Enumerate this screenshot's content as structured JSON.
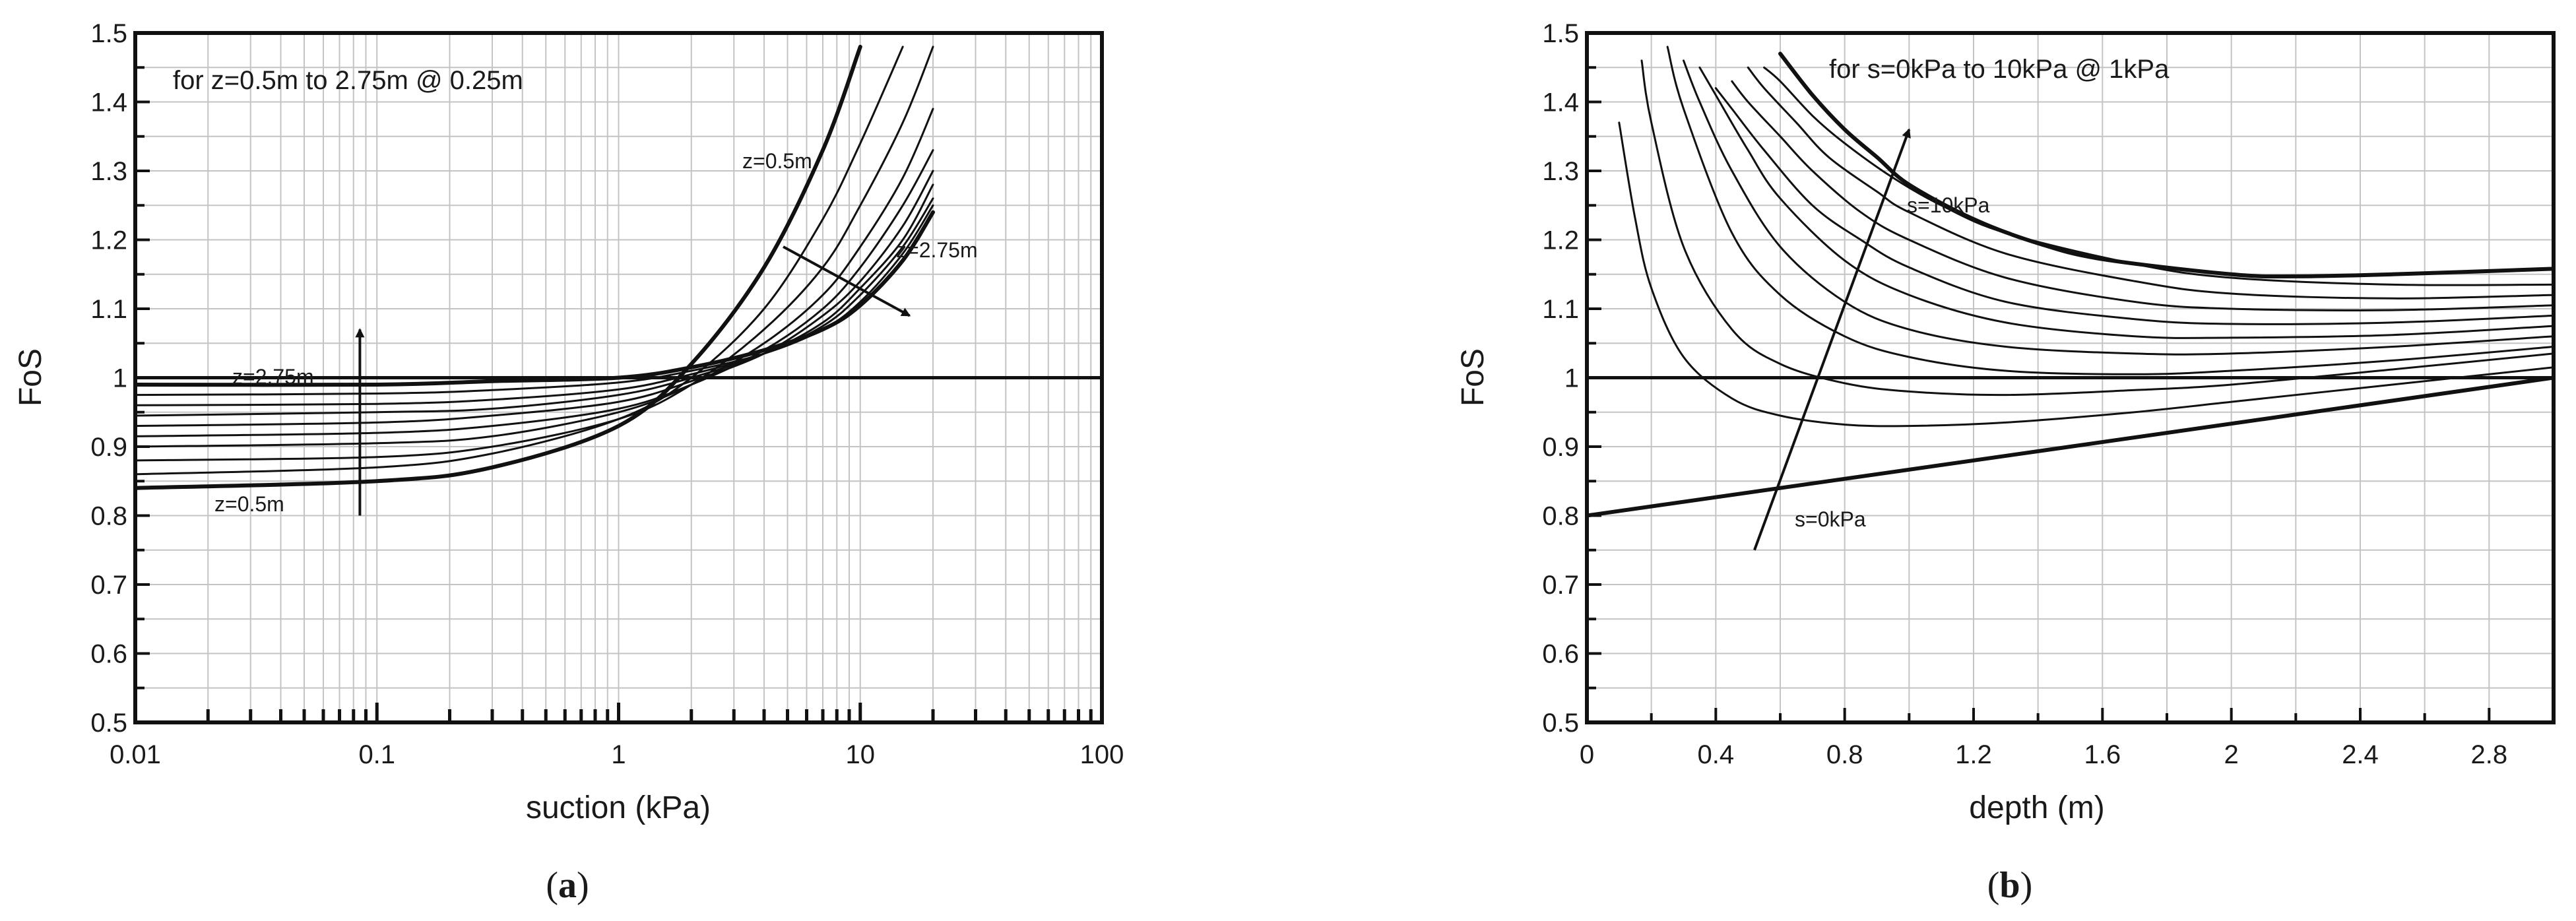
{
  "chart_data": [
    {
      "type": "line",
      "panel_label": "(a)",
      "panel_letter": "a",
      "xlabel": "suction (kPa)",
      "ylabel": "FoS",
      "xscale": "log",
      "xlim": [
        0.01,
        100
      ],
      "ylim": [
        0.5,
        1.5
      ],
      "grid": true,
      "xticks": [
        "0.01",
        "0.1",
        "1",
        "10",
        "100"
      ],
      "yticks": [
        "0.5",
        "0.6",
        "0.7",
        "0.8",
        "0.9",
        "1",
        "1.1",
        "1.2",
        "1.3",
        "1.4",
        "1.5"
      ],
      "annotations": {
        "header": "for z=0.5m to 2.75m @ 0.25m",
        "z_min_low": "z=0.5m",
        "z_max_low": "z=2.75m",
        "z_min_high": "z=0.5m",
        "z_max_high": "z=2.75m"
      },
      "reference_line": {
        "y": 1.0
      },
      "series": [
        {
          "depth": 0.5,
          "x": [
            0.01,
            0.1,
            0.3,
            1,
            2,
            4,
            7,
            10
          ],
          "y": [
            0.84,
            0.85,
            0.87,
            0.93,
            1.02,
            1.16,
            1.33,
            1.48
          ]
        },
        {
          "depth": 0.75,
          "x": [
            0.01,
            0.1,
            0.3,
            1,
            2,
            4,
            7,
            10,
            15
          ],
          "y": [
            0.86,
            0.87,
            0.89,
            0.94,
            1.0,
            1.1,
            1.23,
            1.34,
            1.48
          ]
        },
        {
          "depth": 1.0,
          "x": [
            0.01,
            0.1,
            0.3,
            1,
            2,
            4,
            7,
            10,
            15,
            20
          ],
          "y": [
            0.88,
            0.885,
            0.9,
            0.94,
            0.99,
            1.07,
            1.16,
            1.25,
            1.37,
            1.48
          ]
        },
        {
          "depth": 1.25,
          "x": [
            0.01,
            0.1,
            0.3,
            1,
            2,
            4,
            7,
            10,
            15,
            20
          ],
          "y": [
            0.9,
            0.905,
            0.915,
            0.95,
            0.99,
            1.05,
            1.12,
            1.19,
            1.29,
            1.39
          ]
        },
        {
          "depth": 1.5,
          "x": [
            0.01,
            0.1,
            0.3,
            1,
            2,
            4,
            7,
            10,
            15,
            20
          ],
          "y": [
            0.915,
            0.92,
            0.93,
            0.955,
            0.99,
            1.04,
            1.1,
            1.16,
            1.25,
            1.33
          ]
        },
        {
          "depth": 1.75,
          "x": [
            0.01,
            0.1,
            0.3,
            1,
            2,
            4,
            7,
            10,
            15,
            20
          ],
          "y": [
            0.93,
            0.935,
            0.945,
            0.965,
            0.995,
            1.035,
            1.09,
            1.14,
            1.22,
            1.3
          ]
        },
        {
          "depth": 2.0,
          "x": [
            0.01,
            0.1,
            0.3,
            1,
            2,
            4,
            7,
            10,
            15,
            20
          ],
          "y": [
            0.945,
            0.95,
            0.955,
            0.975,
            1.0,
            1.035,
            1.08,
            1.13,
            1.2,
            1.28
          ]
        },
        {
          "depth": 2.25,
          "x": [
            0.01,
            0.1,
            0.3,
            1,
            2,
            4,
            7,
            10,
            15,
            20
          ],
          "y": [
            0.96,
            0.962,
            0.968,
            0.983,
            1.005,
            1.035,
            1.075,
            1.12,
            1.19,
            1.26
          ]
        },
        {
          "depth": 2.5,
          "x": [
            0.01,
            0.1,
            0.3,
            1,
            2,
            4,
            7,
            10,
            15,
            20
          ],
          "y": [
            0.975,
            0.977,
            0.982,
            0.993,
            1.01,
            1.035,
            1.07,
            1.11,
            1.18,
            1.25
          ]
        },
        {
          "depth": 2.75,
          "x": [
            0.01,
            0.1,
            0.3,
            1,
            2,
            4,
            7,
            10,
            15,
            20
          ],
          "y": [
            0.99,
            0.99,
            0.995,
            1.0,
            1.015,
            1.04,
            1.07,
            1.105,
            1.17,
            1.24
          ]
        }
      ],
      "arrows": [
        {
          "from": [
            0.085,
            0.8
          ],
          "to": [
            0.085,
            1.07
          ]
        },
        {
          "from": [
            4.8,
            1.19
          ],
          "to": [
            16,
            1.09
          ]
        }
      ]
    },
    {
      "type": "line",
      "panel_label": "(b)",
      "panel_letter": "b",
      "xlabel": "depth (m)",
      "ylabel": "FoS",
      "xlim": [
        0,
        3
      ],
      "ylim": [
        0.5,
        1.5
      ],
      "grid": true,
      "xticks": [
        "0",
        "0.4",
        "0.8",
        "1.2",
        "1.6",
        "2",
        "2.4",
        "2.8"
      ],
      "yticks": [
        "0.5",
        "0.6",
        "0.7",
        "0.8",
        "0.9",
        "1",
        "1.1",
        "1.2",
        "1.3",
        "1.4",
        "1.5"
      ],
      "annotations": {
        "header": "for s=0kPa to 10kPa @ 1kPa",
        "s_max": "s=10kPa",
        "s_min": "s=0kPa"
      },
      "reference_line": {
        "y": 1.0
      },
      "series": [
        {
          "suction": 0,
          "x": [
            0,
            3.0
          ],
          "y": [
            0.8,
            1.0
          ]
        },
        {
          "suction": 1,
          "x": [
            0.1,
            0.15,
            0.2,
            0.3,
            0.45,
            0.6,
            0.8,
            1.0,
            1.3,
            1.7,
            2.0,
            2.5,
            3.0
          ],
          "y": [
            1.37,
            1.23,
            1.13,
            1.03,
            0.97,
            0.945,
            0.932,
            0.93,
            0.935,
            0.95,
            0.965,
            0.99,
            1.015
          ]
        },
        {
          "suction": 2,
          "x": [
            0.17,
            0.2,
            0.3,
            0.45,
            0.6,
            0.8,
            1.0,
            1.3,
            1.7,
            2.0,
            2.5,
            3.0
          ],
          "y": [
            1.46,
            1.37,
            1.19,
            1.07,
            1.02,
            0.992,
            0.98,
            0.975,
            0.982,
            0.99,
            1.012,
            1.035
          ]
        },
        {
          "suction": 3,
          "x": [
            0.25,
            0.3,
            0.45,
            0.6,
            0.8,
            1.0,
            1.3,
            1.7,
            2.0,
            2.5,
            3.0
          ],
          "y": [
            1.48,
            1.39,
            1.21,
            1.12,
            1.06,
            1.03,
            1.01,
            1.005,
            1.01,
            1.025,
            1.045
          ]
        },
        {
          "suction": 4,
          "x": [
            0.3,
            0.35,
            0.45,
            0.6,
            0.8,
            1.0,
            1.3,
            1.7,
            2.0,
            2.5,
            3.0
          ],
          "y": [
            1.46,
            1.4,
            1.3,
            1.19,
            1.11,
            1.07,
            1.045,
            1.035,
            1.035,
            1.045,
            1.06
          ]
        },
        {
          "suction": 5,
          "x": [
            0.35,
            0.4,
            0.5,
            0.6,
            0.8,
            1.0,
            1.3,
            1.7,
            2.0,
            2.5,
            3.0
          ],
          "y": [
            1.45,
            1.41,
            1.33,
            1.26,
            1.17,
            1.12,
            1.08,
            1.06,
            1.058,
            1.062,
            1.075
          ]
        },
        {
          "suction": 6,
          "x": [
            0.4,
            0.45,
            0.55,
            0.7,
            0.85,
            1.0,
            1.3,
            1.7,
            2.0,
            2.5,
            3.0
          ],
          "y": [
            1.42,
            1.39,
            1.33,
            1.25,
            1.2,
            1.16,
            1.11,
            1.085,
            1.078,
            1.08,
            1.09
          ]
        },
        {
          "suction": 7,
          "x": [
            0.45,
            0.5,
            0.6,
            0.7,
            0.85,
            1.0,
            1.3,
            1.7,
            2.0,
            2.5,
            3.0
          ],
          "y": [
            1.43,
            1.4,
            1.35,
            1.3,
            1.24,
            1.2,
            1.145,
            1.11,
            1.1,
            1.098,
            1.105
          ]
        },
        {
          "suction": 8,
          "x": [
            0.5,
            0.55,
            0.65,
            0.75,
            0.9,
            1.0,
            1.3,
            1.7,
            2.0,
            2.5,
            3.0
          ],
          "y": [
            1.45,
            1.42,
            1.37,
            1.32,
            1.27,
            1.24,
            1.18,
            1.14,
            1.122,
            1.115,
            1.12
          ]
        },
        {
          "suction": 9,
          "x": [
            0.55,
            0.6,
            0.7,
            0.8,
            0.95,
            1.1,
            1.3,
            1.7,
            2.0,
            2.5,
            3.0
          ],
          "y": [
            1.45,
            1.43,
            1.38,
            1.34,
            1.29,
            1.25,
            1.21,
            1.165,
            1.145,
            1.135,
            1.135
          ]
        },
        {
          "suction": 10,
          "x": [
            0.6,
            0.7,
            0.8,
            0.9,
            1.0,
            1.2,
            1.4,
            1.6,
            2.0,
            2.2,
            2.5,
            3.0
          ],
          "y": [
            1.47,
            1.41,
            1.36,
            1.32,
            1.28,
            1.23,
            1.195,
            1.172,
            1.15,
            1.147,
            1.15,
            1.158
          ]
        }
      ],
      "arrows": [
        {
          "from": [
            0.52,
            0.75
          ],
          "to": [
            1.0,
            1.36
          ]
        }
      ]
    }
  ]
}
